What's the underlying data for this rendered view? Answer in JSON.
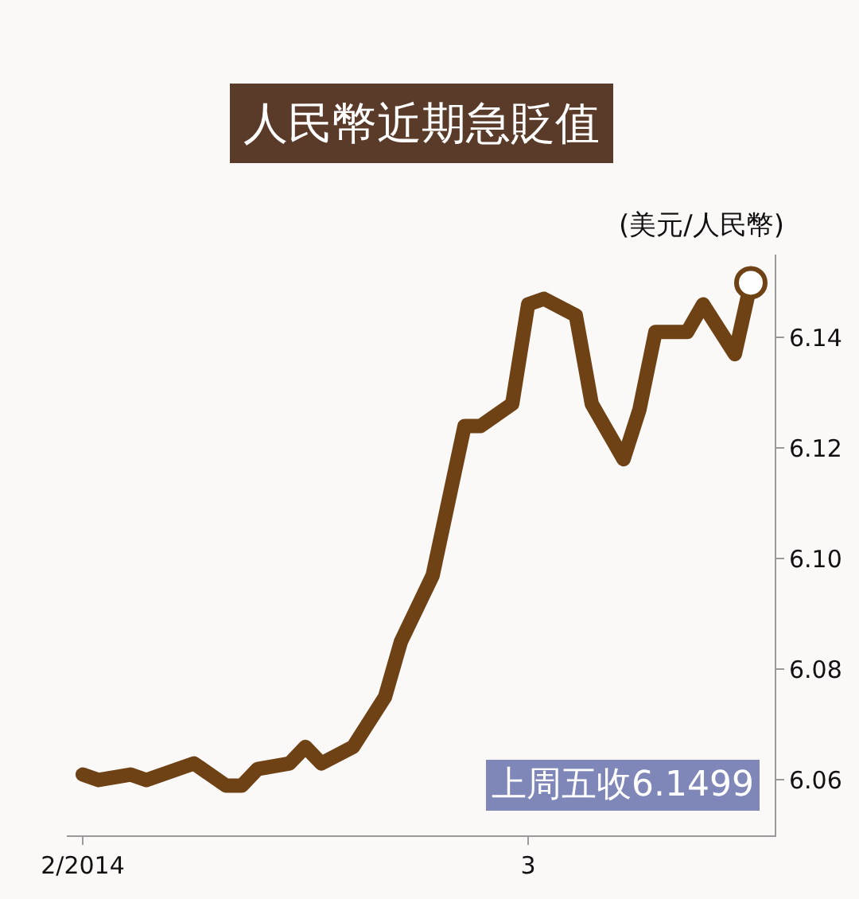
{
  "chart_data": {
    "type": "line",
    "title": "人民幣近期急貶值",
    "ylabel": "(美元/人民幣)",
    "x": [
      "2014-02-01",
      "2014-02-02",
      "2014-02-04",
      "2014-02-05",
      "2014-02-08",
      "2014-02-10",
      "2014-02-11",
      "2014-02-12",
      "2014-02-14",
      "2014-02-15",
      "2014-02-16",
      "2014-02-18",
      "2014-02-20",
      "2014-02-21",
      "2014-02-23",
      "2014-02-25",
      "2014-02-26",
      "2014-02-28",
      "2014-03-01",
      "2014-03-02",
      "2014-03-04",
      "2014-03-05",
      "2014-03-07",
      "2014-03-08",
      "2014-03-09",
      "2014-03-11",
      "2014-03-12",
      "2014-03-14",
      "2014-03-15"
    ],
    "series": [
      {
        "color": "#6e4215",
        "values": [
          6.061,
          6.06,
          6.061,
          6.06,
          6.063,
          6.059,
          6.059,
          6.062,
          6.063,
          6.066,
          6.063,
          6.066,
          6.075,
          6.085,
          6.097,
          6.124,
          6.124,
          6.128,
          6.146,
          6.147,
          6.144,
          6.128,
          6.118,
          6.127,
          6.141,
          6.141,
          6.146,
          6.137,
          6.1499
        ]
      }
    ],
    "xlim": [
      "2014-01-31",
      "2014-03-16T12:00"
    ],
    "xticks": [
      {
        "value": "2014-02-01",
        "label": "2/2014"
      },
      {
        "value": "2014-03-01",
        "label": "3"
      }
    ],
    "ylim": [
      6.05,
      6.155
    ],
    "yticks": [
      6.06,
      6.08,
      {
        "value": 6.1,
        "label": "6.10"
      },
      6.12,
      6.14
    ],
    "annotations": [
      "上周五收6.1499"
    ],
    "grid": false,
    "legend": false
  }
}
